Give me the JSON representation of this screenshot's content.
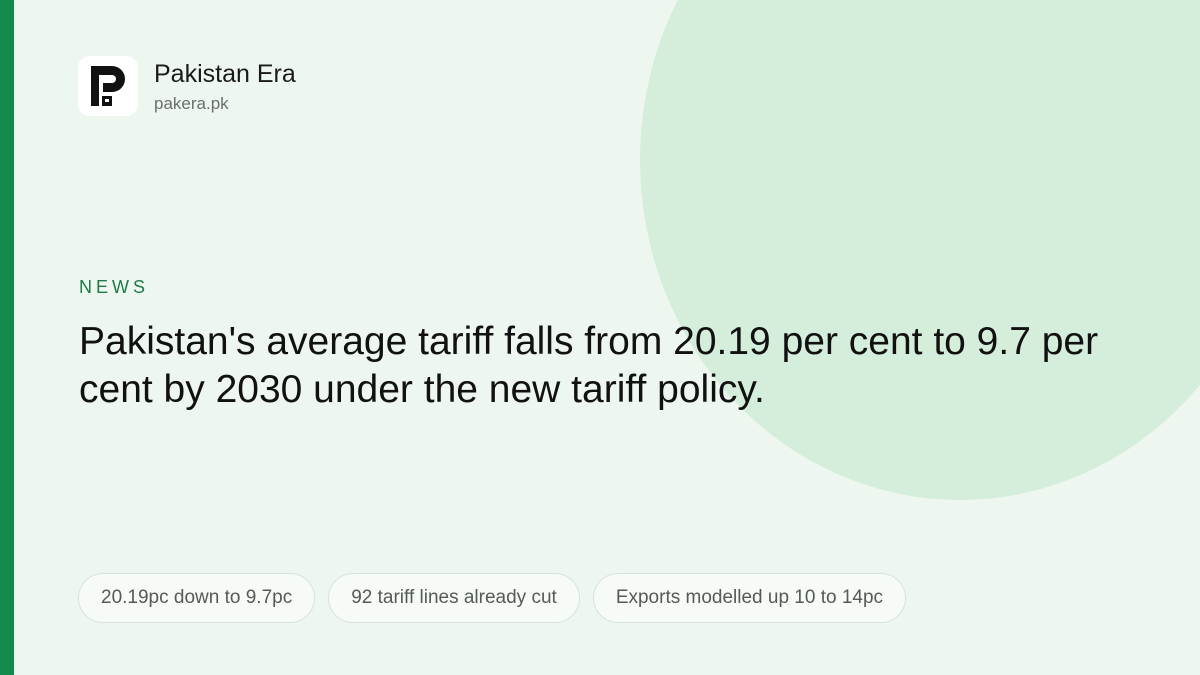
{
  "brand": {
    "name": "Pakistan Era",
    "domain": "pakera.pk"
  },
  "category": "NEWS",
  "headline": "Pakistan's average tariff falls from 20.19 per cent to 9.7 per cent by 2030 under the new tariff policy.",
  "tags": [
    "20.19pc down to 9.7pc",
    "92 tariff lines already cut",
    "Exports modelled up 10 to 14pc"
  ]
}
